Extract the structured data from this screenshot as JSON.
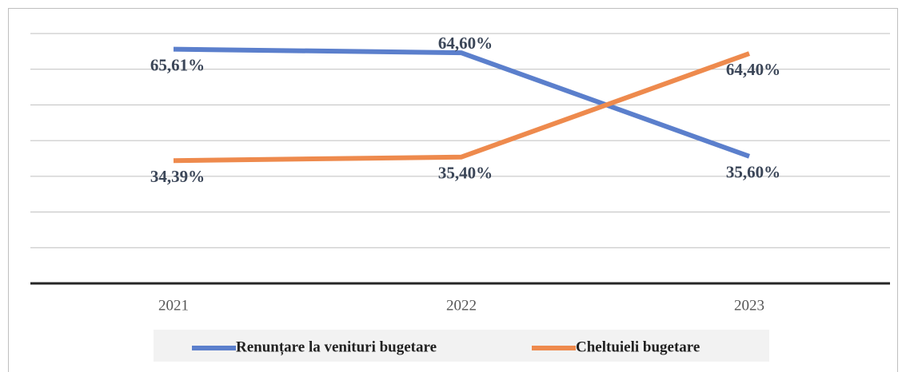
{
  "chart_data": {
    "type": "line",
    "categories": [
      "2021",
      "2022",
      "2023"
    ],
    "series": [
      {
        "name": "Renunțare la venituri bugetare",
        "color": "#5b7fcc",
        "values": [
          65.61,
          64.6,
          35.6
        ],
        "value_labels": [
          "65,61%",
          "64,60%",
          "35,60%"
        ]
      },
      {
        "name": "Cheltuieli bugetare",
        "color": "#ee8a4d",
        "values": [
          34.39,
          35.4,
          64.4
        ],
        "value_labels": [
          "34,39%",
          "35,40%",
          "64,40%"
        ]
      }
    ],
    "ylim": [
      0,
      70
    ],
    "yticks": [
      0,
      10,
      20,
      30,
      40,
      50,
      60,
      70
    ],
    "grid": true,
    "legend": "bottom"
  }
}
